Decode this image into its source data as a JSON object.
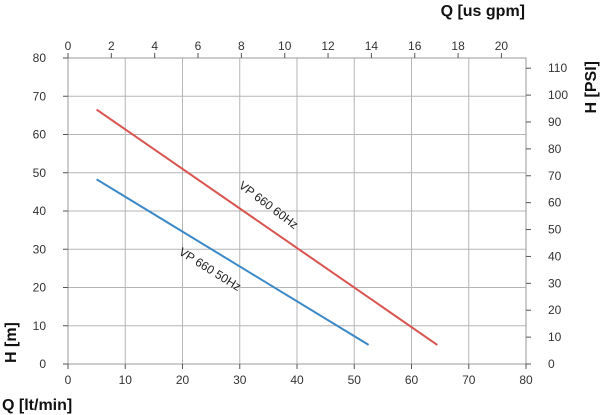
{
  "chart_data": {
    "type": "line",
    "x_bottom": {
      "label": "Q [lt/min]",
      "range": [
        0,
        80
      ],
      "ticks": [
        0,
        10,
        20,
        30,
        40,
        50,
        60,
        70,
        80
      ]
    },
    "x_top": {
      "label": "Q [us gpm]",
      "range": [
        0,
        21.134
      ],
      "ticks": [
        0,
        2,
        4,
        6,
        8,
        10,
        12,
        14,
        16,
        18,
        20
      ]
    },
    "y_left": {
      "label": "H [m]",
      "range": [
        0,
        80
      ],
      "ticks": [
        0,
        10,
        20,
        30,
        40,
        50,
        60,
        70,
        80
      ]
    },
    "y_right": {
      "label": "H [PSI]",
      "range": [
        0,
        113.8
      ],
      "ticks": [
        0,
        10,
        20,
        30,
        40,
        50,
        60,
        70,
        80,
        90,
        100,
        110
      ]
    },
    "grid": true,
    "series": [
      {
        "name": "VP 660 60Hz",
        "color": "#d9534f",
        "x": [
          5,
          64.5
        ],
        "y": [
          66.5,
          5
        ]
      },
      {
        "name": "VP 660 50Hz",
        "color": "#3a88c7",
        "x": [
          5,
          52.5
        ],
        "y": [
          48.3,
          5
        ]
      }
    ]
  }
}
